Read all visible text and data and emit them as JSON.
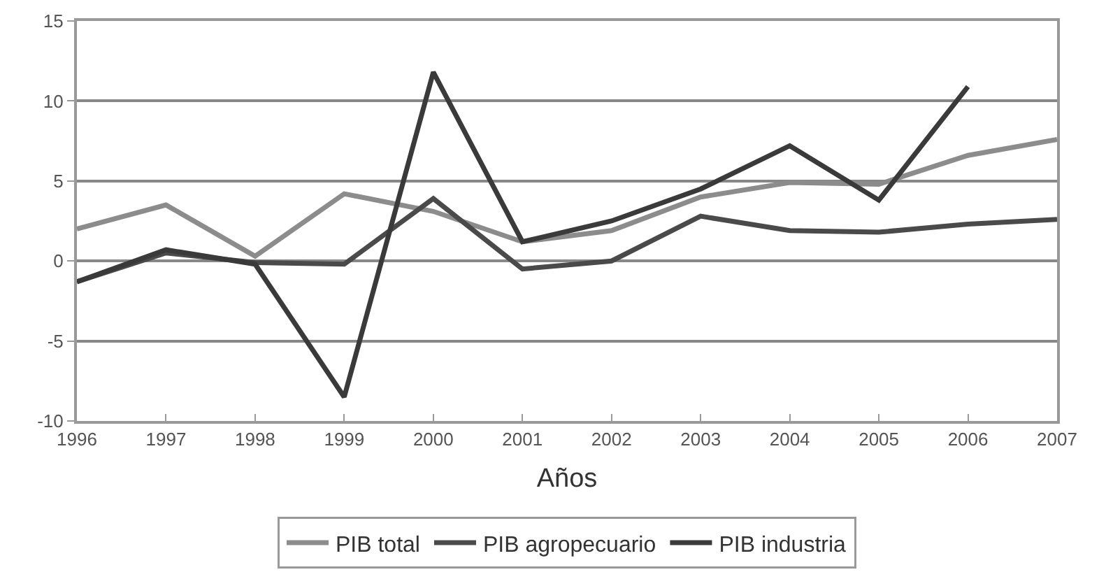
{
  "chart_data": {
    "type": "line",
    "xlabel": "Años",
    "categories": [
      "1996",
      "1997",
      "1998",
      "1999",
      "2000",
      "2001",
      "2002",
      "2003",
      "2004",
      "2005",
      "2006",
      "2007"
    ],
    "series": [
      {
        "name": "PIB total",
        "color": "#8c8c8c",
        "values": [
          2.0,
          3.5,
          0.3,
          4.2,
          3.1,
          1.2,
          1.9,
          4.0,
          4.9,
          4.8,
          6.6,
          7.6
        ]
      },
      {
        "name": "PIB agropecuario",
        "color": "#4a4a4a",
        "values": [
          -1.3,
          0.5,
          -0.1,
          -0.2,
          3.9,
          -0.5,
          0.0,
          2.8,
          1.9,
          1.8,
          2.3,
          2.6
        ]
      },
      {
        "name": "PIB industria",
        "color": "#3a3a3a",
        "values": [
          -1.3,
          0.7,
          -0.2,
          -8.5,
          11.8,
          1.2,
          2.5,
          4.5,
          7.2,
          3.8,
          10.9,
          null
        ]
      }
    ],
    "ylim": [
      -10,
      15
    ],
    "yticks": [
      -10,
      -5,
      0,
      5,
      10,
      15
    ],
    "grid": "y",
    "legend": "bottom",
    "marker": "none",
    "line_style": "solid"
  }
}
